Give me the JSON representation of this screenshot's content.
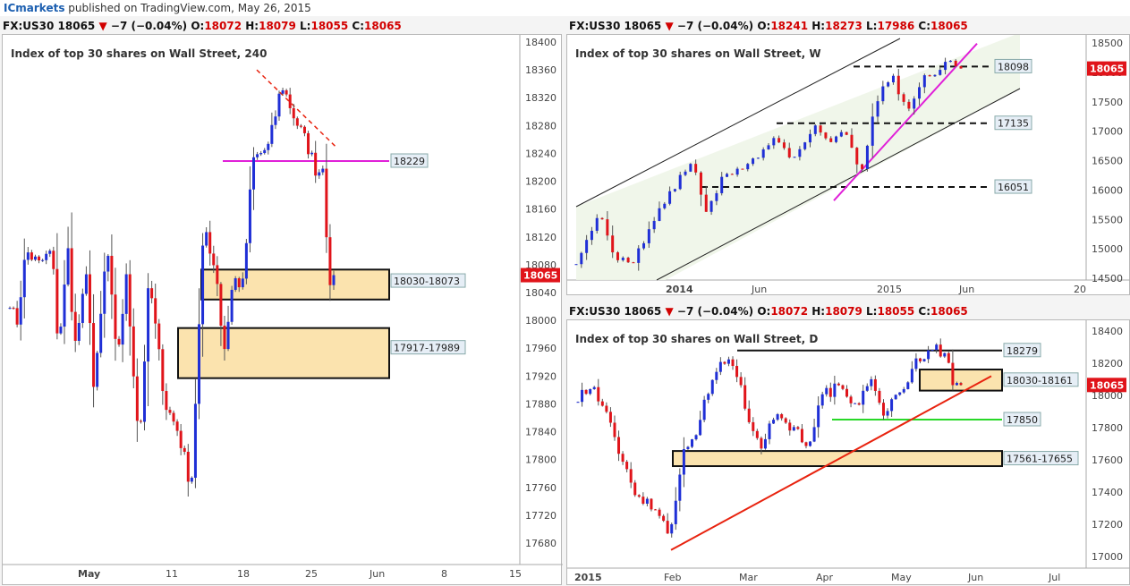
{
  "header": {
    "publisher": "ICmarkets",
    "published_text": "published on TradingView.com, May 26, 2015"
  },
  "colors": {
    "up": "#1f2fd6",
    "down": "#e0141a",
    "magenta": "#e020d8",
    "red_line": "#e8230f",
    "green_line": "#28d828",
    "zone_fill": "#fbe3ae",
    "channel_fill": "#eef5e8",
    "price_tag": "#e0141a",
    "label_bg": "#e6eef6"
  },
  "charts": [
    {
      "id": "h4",
      "header": {
        "symbol": "FX:US30",
        "last": "18065",
        "arrow": "▼",
        "change": "−7 (−0.04%)",
        "o": "18072",
        "h": "18079",
        "l": "18055",
        "c": "18065"
      },
      "title": "Index of top 30 shares on Wall Street, 240",
      "price_tag": "18065",
      "y_ticks": [
        "18400",
        "18360",
        "18320",
        "18280",
        "18240",
        "18200",
        "18160",
        "18120",
        "18080",
        "18040",
        "18000",
        "17960",
        "17920",
        "17880",
        "17840",
        "17800",
        "17760",
        "17720",
        "17680"
      ],
      "x_ticks": [
        "May",
        "11",
        "18",
        "25",
        "Jun",
        "8",
        "15"
      ],
      "levels": [
        {
          "label": "18229",
          "value": 18229
        }
      ],
      "zones": [
        {
          "label": "18030-18073",
          "low": 18030,
          "high": 18073
        },
        {
          "label": "17917-17989",
          "low": 17917,
          "high": 17989
        }
      ]
    },
    {
      "id": "weekly",
      "header": {
        "symbol": "FX:US30",
        "last": "18065",
        "arrow": "▼",
        "change": "−7 (−0.04%)",
        "o": "18241",
        "h": "18273",
        "l": "17986",
        "c": "18065"
      },
      "title": "Index of top 30 shares on Wall Street, W",
      "price_tag": "18065",
      "y_ticks": [
        "18500",
        "18000",
        "17500",
        "17000",
        "16500",
        "16000",
        "15500",
        "15000",
        "14500"
      ],
      "x_ticks": [
        "2014",
        "Jun",
        "2015",
        "Jun",
        "20"
      ],
      "levels": [
        {
          "label": "18098",
          "value": 18098
        },
        {
          "label": "17135",
          "value": 17135
        },
        {
          "label": "16051",
          "value": 16051
        }
      ]
    },
    {
      "id": "daily",
      "header": {
        "symbol": "FX:US30",
        "last": "18065",
        "arrow": "▼",
        "change": "−7 (−0.04%)",
        "o": "18072",
        "h": "18079",
        "l": "18055",
        "c": "18065"
      },
      "title": "Index of top 30 shares on Wall Street, D",
      "price_tag": "18065",
      "y_ticks": [
        "18400",
        "18200",
        "18000",
        "17800",
        "17600",
        "17400",
        "17200",
        "17000"
      ],
      "x_ticks": [
        "2015",
        "Feb",
        "Mar",
        "Apr",
        "May",
        "Jun",
        "Jul"
      ],
      "levels": [
        {
          "label": "18279",
          "value": 18279
        },
        {
          "label": "17850",
          "value": 17850
        }
      ],
      "zones": [
        {
          "label": "18030-18161",
          "low": 18030,
          "high": 18161
        },
        {
          "label": "17561-17655",
          "low": 17561,
          "high": 17655
        }
      ]
    }
  ]
}
